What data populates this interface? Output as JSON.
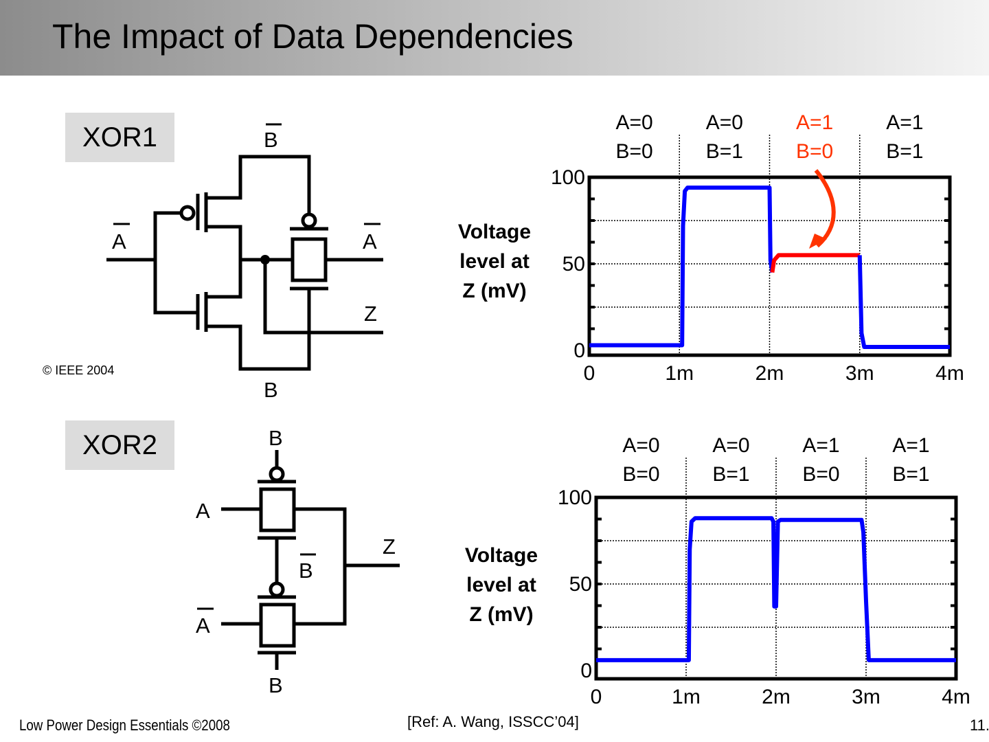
{
  "header": {
    "title": "The Impact of Data Dependencies"
  },
  "xor1": {
    "label": "XOR1",
    "signals": {
      "b_bar": "B",
      "a_bar_left": "A",
      "a_bar_right": "A",
      "z": "Z",
      "b": "B"
    },
    "copyright": "© IEEE 2004"
  },
  "xor2": {
    "label": "XOR2",
    "signals": {
      "b_top": "B",
      "a": "A",
      "z": "Z",
      "b_bar": "B",
      "a_bar": "A",
      "b_bottom": "B"
    }
  },
  "footer": {
    "left": "Low Power Design Essentials ©2008",
    "ref": "[Ref: A. Wang, ISSCC’04]",
    "page": "11."
  },
  "colors": {
    "trace": "#0000ff",
    "highlight": "#ff0000",
    "arrow": "#ff3300"
  },
  "chart_data": [
    {
      "type": "line",
      "title": "XOR1",
      "ylabel": [
        "Voltage",
        "level at",
        "Z (mV)"
      ],
      "xlim": [
        0,
        4
      ],
      "ylim": [
        0,
        100
      ],
      "xticks": [
        "0",
        "1m",
        "2m",
        "3m",
        "4m"
      ],
      "yticks": [
        "0",
        "50",
        "100"
      ],
      "grid": true,
      "segments": [
        {
          "a": "A=0",
          "b": "B=0",
          "highlight": false
        },
        {
          "a": "A=0",
          "b": "B=1",
          "highlight": false
        },
        {
          "a": "A=1",
          "b": "B=0",
          "highlight": true
        },
        {
          "a": "A=1",
          "b": "B=1",
          "highlight": false
        }
      ],
      "series": [
        {
          "name": "Z",
          "color": "blue",
          "points": [
            [
              0,
              3
            ],
            [
              1.0,
              3
            ],
            [
              1.03,
              3
            ],
            [
              1.04,
              72
            ],
            [
              1.06,
              92
            ],
            [
              1.09,
              94
            ],
            [
              2.0,
              94
            ],
            [
              2.01,
              52
            ],
            [
              2.03,
              45
            ]
          ]
        },
        {
          "name": "Z (A=1,B=0)",
          "color": "red",
          "points": [
            [
              2.03,
              45
            ],
            [
              2.05,
              52
            ],
            [
              2.1,
              55
            ],
            [
              3.0,
              55
            ]
          ]
        },
        {
          "name": "Z",
          "color": "blue",
          "points": [
            [
              3.0,
              55
            ],
            [
              3.02,
              10
            ],
            [
              3.05,
              2
            ],
            [
              4.0,
              2
            ]
          ]
        }
      ]
    },
    {
      "type": "line",
      "title": "XOR2",
      "ylabel": [
        "Voltage",
        "level at",
        "Z (mV)"
      ],
      "xlim": [
        0,
        4
      ],
      "ylim": [
        0,
        100
      ],
      "xticks": [
        "0",
        "1m",
        "2m",
        "3m",
        "4m"
      ],
      "yticks": [
        "0",
        "50",
        "100"
      ],
      "grid": true,
      "segments": [
        {
          "a": "A=0",
          "b": "B=0",
          "highlight": false
        },
        {
          "a": "A=0",
          "b": "B=1",
          "highlight": false
        },
        {
          "a": "A=1",
          "b": "B=0",
          "highlight": false
        },
        {
          "a": "A=1",
          "b": "B=1",
          "highlight": false
        }
      ],
      "series": [
        {
          "name": "Z",
          "color": "blue",
          "points": [
            [
              0,
              6
            ],
            [
              1.0,
              6
            ],
            [
              1.03,
              6
            ],
            [
              1.04,
              70
            ],
            [
              1.06,
              86
            ],
            [
              1.1,
              88
            ],
            [
              1.95,
              88
            ],
            [
              1.97,
              86
            ],
            [
              1.98,
              37
            ],
            [
              2.0,
              37
            ],
            [
              2.02,
              86
            ],
            [
              2.05,
              87
            ],
            [
              2.95,
              87
            ],
            [
              2.97,
              80
            ],
            [
              3.0,
              40
            ],
            [
              3.03,
              6
            ],
            [
              4.0,
              6
            ]
          ]
        }
      ]
    }
  ]
}
